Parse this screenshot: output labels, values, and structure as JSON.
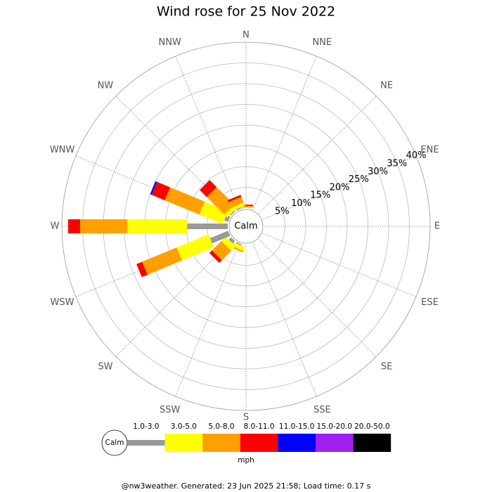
{
  "chart_data": {
    "type": "windrose",
    "title": "Wind rose for 25 Nov 2022",
    "calm_label": "Calm",
    "unit_label": "mph",
    "footer": "@nw3weather. Generated: 23 Jun 2025 21:58; Load time: 0.17 s",
    "categories": [
      "N",
      "NNE",
      "NE",
      "ENE",
      "E",
      "ESE",
      "SE",
      "SSE",
      "S",
      "SSW",
      "SW",
      "WSW",
      "W",
      "WNW",
      "NW",
      "NNW"
    ],
    "rlim": [
      0,
      40
    ],
    "rticks": [
      {
        "value": 5,
        "label": "5%"
      },
      {
        "value": 10,
        "label": "10%"
      },
      {
        "value": 15,
        "label": "15%"
      },
      {
        "value": 20,
        "label": "20%"
      },
      {
        "value": 25,
        "label": "25%"
      },
      {
        "value": 30,
        "label": "30%"
      },
      {
        "value": 35,
        "label": "35%"
      },
      {
        "value": 40,
        "label": "40%"
      }
    ],
    "series": [
      {
        "name": "1.0-3.0",
        "color": "#999999",
        "values": [
          0,
          0,
          0,
          0,
          0,
          0,
          0,
          0,
          0,
          0.3,
          0.8,
          4.7,
          9.8,
          1.0,
          0.3,
          0.3
        ]
      },
      {
        "name": "3.0-5.0",
        "color": "#ffff00",
        "values": [
          0.2,
          0,
          0,
          0,
          0,
          0,
          0,
          0,
          0,
          1.0,
          1.5,
          8.3,
          14.4,
          6.1,
          1.0,
          0.8
        ]
      },
      {
        "name": "5.0-8.0",
        "color": "#ffa000",
        "values": [
          0.3,
          0,
          0,
          0,
          0,
          0,
          0,
          0,
          0,
          0.4,
          3.2,
          9.0,
          11.4,
          9.0,
          6.0,
          1.5
        ]
      },
      {
        "name": "8.0-11.0",
        "color": "#ff0000",
        "values": [
          0.3,
          0,
          0,
          0,
          0,
          0,
          0,
          0,
          0,
          0,
          0.9,
          1.5,
          2.9,
          3.4,
          2.4,
          0.5
        ]
      },
      {
        "name": "11.0-15.0",
        "color": "#0000ff",
        "values": [
          0,
          0,
          0,
          0,
          0,
          0,
          0,
          0,
          0,
          0,
          0,
          0,
          0,
          0.4,
          0,
          0
        ]
      },
      {
        "name": "15.0-20.0",
        "color": "#a020f0",
        "values": [
          0,
          0,
          0,
          0,
          0,
          0,
          0,
          0,
          0,
          0,
          0,
          0,
          0,
          0,
          0,
          0
        ]
      },
      {
        "name": "20.0-50.0",
        "color": "#000000",
        "values": [
          0,
          0,
          0,
          0,
          0,
          0,
          0,
          0,
          0,
          0,
          0,
          0,
          0,
          0,
          0,
          0
        ]
      }
    ]
  }
}
